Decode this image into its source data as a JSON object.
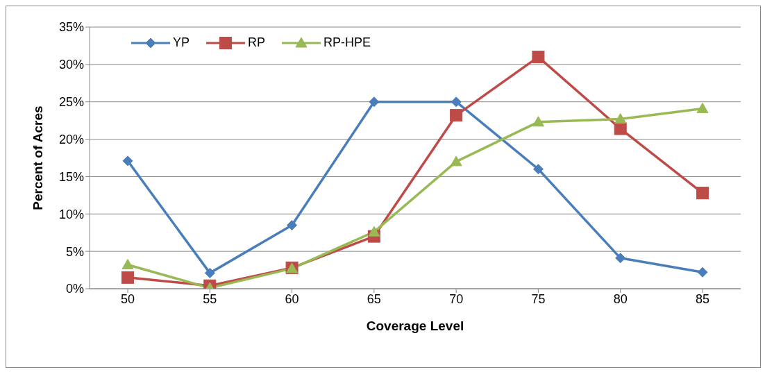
{
  "chart_data": {
    "type": "line",
    "xlabel": "Coverage Level",
    "ylabel": "Percent of Acres",
    "categories": [
      "50",
      "55",
      "60",
      "65",
      "70",
      "75",
      "80",
      "85"
    ],
    "series": [
      {
        "name": "YP",
        "color": "#4a7ebb",
        "marker": "diamond",
        "values": [
          17.1,
          2.1,
          8.5,
          25.0,
          25.0,
          16.0,
          4.1,
          2.2
        ]
      },
      {
        "name": "RP",
        "color": "#be4b48",
        "marker": "square",
        "values": [
          1.5,
          0.4,
          2.8,
          7.0,
          23.2,
          31.0,
          21.4,
          12.8
        ]
      },
      {
        "name": "RP-HPE",
        "color": "#98b954",
        "marker": "triangle",
        "values": [
          3.2,
          0.1,
          2.7,
          7.6,
          17.0,
          22.3,
          22.7,
          24.1
        ]
      }
    ],
    "ylim": [
      0,
      35
    ],
    "yticks": [
      {
        "value": 0,
        "label": "0%"
      },
      {
        "value": 5,
        "label": "5%"
      },
      {
        "value": 10,
        "label": "10%"
      },
      {
        "value": 15,
        "label": "15%"
      },
      {
        "value": 20,
        "label": "20%"
      },
      {
        "value": 25,
        "label": "25%"
      },
      {
        "value": 30,
        "label": "30%"
      },
      {
        "value": 35,
        "label": "35%"
      }
    ],
    "grid": "y",
    "legend": "top left",
    "line_style": "solid"
  }
}
